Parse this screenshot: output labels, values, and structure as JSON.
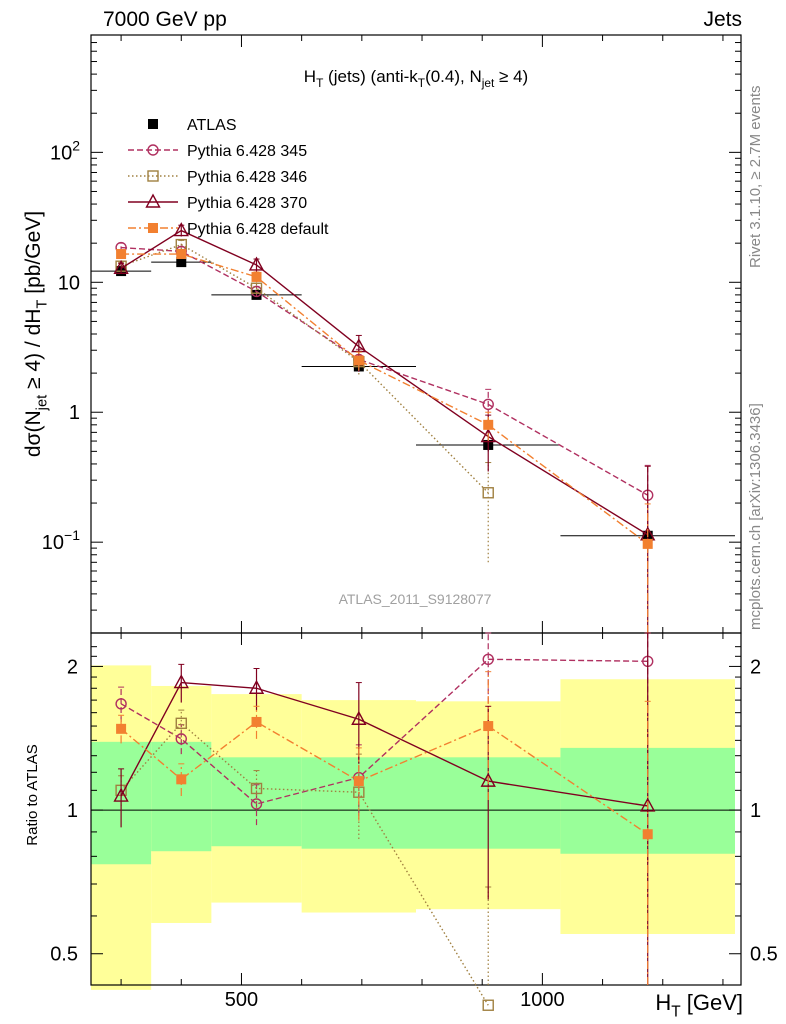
{
  "header": {
    "left": "7000 GeV pp",
    "right": "Jets"
  },
  "side_text": {
    "rivet": "Rivet 3.1.10, ≥ 2.7M events",
    "mcplots": "mcplots.cern.ch [arXiv:1306.3436]"
  },
  "chart_data": [
    {
      "type": "line",
      "panel": "main",
      "title": "H_T (jets) (anti-k_T(0.4), N_jet ≥ 4)",
      "ylabel": "dσ(N_jet ≥ 4) / dH_T [pb/GeV]",
      "xlabel": "",
      "yscale": "log",
      "xlim": [
        250,
        1330
      ],
      "ylim": [
        0.02,
        800
      ],
      "ytick_labels": [
        "10^-1",
        "1",
        "10",
        "10^2"
      ],
      "watermark": "ATLAS_2011_S9128077",
      "legend_position": "top-left",
      "series": [
        {
          "name": "ATLAS",
          "color": "#000000",
          "marker": "filled-square",
          "x": [
            300,
            400,
            525,
            695,
            910,
            1175
          ],
          "y": [
            12.2,
            14.3,
            8.0,
            2.25,
            0.56,
            0.112
          ],
          "xerr_low": [
            50,
            50,
            75,
            95,
            120,
            145
          ],
          "xerr_high": [
            50,
            50,
            75,
            95,
            120,
            145
          ],
          "yerr": [
            0.7,
            0.8,
            0.6,
            0.2,
            0.06,
            0.02
          ]
        },
        {
          "name": "Pythia 6.428 345",
          "color": "#b03060",
          "dash": "dashed",
          "marker": "open-circle",
          "x": [
            300,
            400,
            525,
            695,
            910,
            1175
          ],
          "y": [
            18.5,
            17.3,
            8.5,
            2.55,
            1.15,
            0.23
          ],
          "yerr": [
            1.5,
            1.4,
            0.8,
            0.5,
            0.35,
            0.16
          ]
        },
        {
          "name": "Pythia 6.428 346",
          "color": "#a08040",
          "dash": "dotted",
          "marker": "open-square",
          "x": [
            300,
            400,
            525,
            695,
            910
          ],
          "y": [
            13.3,
            19.5,
            9.0,
            2.45,
            0.24
          ],
          "yerr": [
            1.0,
            1.5,
            0.8,
            0.5,
            0.17
          ]
        },
        {
          "name": "Pythia 6.428 370",
          "color": "#800020",
          "dash": "solid",
          "marker": "open-triangle",
          "x": [
            300,
            400,
            525,
            695,
            910,
            1175
          ],
          "y": [
            12.8,
            25.0,
            13.6,
            3.2,
            0.65,
            0.114
          ],
          "yerr": [
            1.2,
            2.5,
            1.5,
            0.7,
            0.3,
            0.27
          ]
        },
        {
          "name": "Pythia 6.428 default",
          "color": "#f28030",
          "dash": "dashdot",
          "marker": "filled-square",
          "x": [
            300,
            400,
            525,
            695,
            910,
            1175
          ],
          "y": [
            16.5,
            16.5,
            11.0,
            2.5,
            0.8,
            0.097
          ],
          "yerr": [
            1.2,
            1.3,
            1.0,
            0.4,
            0.2,
            0.1
          ]
        }
      ]
    },
    {
      "type": "line",
      "panel": "ratio",
      "ylabel": "Ratio to ATLAS",
      "xlabel": "H_T [GeV]",
      "yscale": "log",
      "xlim": [
        250,
        1330
      ],
      "ylim": [
        0.43,
        2.35
      ],
      "ytick_labels": [
        "0.5",
        "1",
        "2"
      ],
      "xtick_labels": [
        "500",
        "1000"
      ],
      "bands": {
        "bin_edges": [
          250,
          350,
          450,
          600,
          790,
          1030,
          1320
        ],
        "stat_low": [
          0.77,
          0.82,
          0.84,
          0.83,
          0.83,
          0.81
        ],
        "stat_high": [
          1.39,
          1.39,
          1.29,
          1.29,
          1.29,
          1.35
        ],
        "total_low": [
          0.42,
          0.58,
          0.64,
          0.61,
          0.62,
          0.55
        ],
        "total_high": [
          2.01,
          1.82,
          1.75,
          1.7,
          1.69,
          1.88
        ],
        "stat_color": "#99ff99",
        "total_color": "#ffff99"
      },
      "series": [
        {
          "name": "Pythia 6.428 345",
          "color": "#b03060",
          "x": [
            300,
            400,
            525,
            695,
            910,
            1175
          ],
          "y": [
            1.67,
            1.41,
            1.03,
            1.17,
            2.07,
            2.05
          ],
          "yerr": [
            0.14,
            0.1,
            0.1,
            0.2,
            0.6,
            1.4
          ]
        },
        {
          "name": "Pythia 6.428 346",
          "color": "#a08040",
          "x": [
            300,
            400,
            525,
            695,
            910
          ],
          "y": [
            1.1,
            1.52,
            1.11,
            1.09,
            0.39
          ],
          "yerr": [
            0.08,
            0.1,
            0.1,
            0.22,
            0.3
          ]
        },
        {
          "name": "Pythia 6.428 370",
          "color": "#800020",
          "x": [
            300,
            400,
            525,
            695,
            910,
            1175
          ],
          "y": [
            1.07,
            1.85,
            1.8,
            1.55,
            1.15,
            1.02
          ],
          "yerr": [
            0.15,
            0.17,
            0.18,
            0.3,
            0.5,
            2.4
          ]
        },
        {
          "name": "Pythia 6.428 default",
          "color": "#f28030",
          "x": [
            300,
            400,
            525,
            695,
            910,
            1175
          ],
          "y": [
            1.48,
            1.16,
            1.53,
            1.15,
            1.5,
            0.89
          ],
          "yerr": [
            0.1,
            0.09,
            0.12,
            0.2,
            0.45,
            0.8
          ]
        }
      ]
    }
  ]
}
